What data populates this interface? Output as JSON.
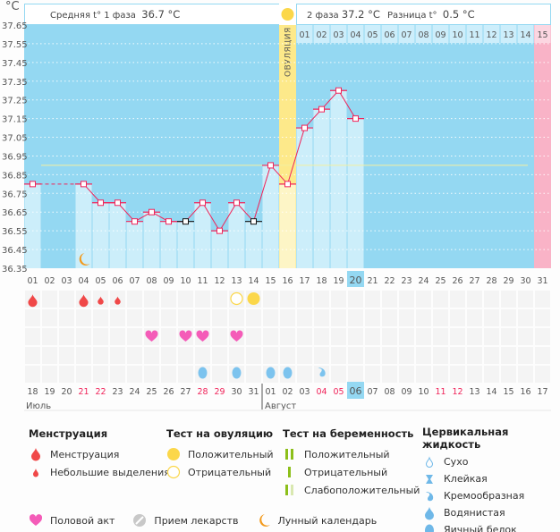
{
  "unit_label": "°C",
  "header": {
    "phase1_label": "Средняя t° 1 фаза",
    "phase1_value": "36.7 °C",
    "phase2_label": "2 фаза",
    "phase2_value": "37.2 °C",
    "diff_label": "Разница t°",
    "diff_value": "0.5 °C",
    "ovulation_label": "ОВУЛЯЦИЯ"
  },
  "colors": {
    "bg": "#94d8f2",
    "bar": "#cceefa",
    "line": "#f0245a",
    "ovulation": "#fde98a",
    "period_next": "#f9b3c7",
    "cover": "#f3f0a0",
    "highlight": "#94d8f2"
  },
  "chart_data": {
    "type": "line",
    "ylabel": "°C",
    "ylim": [
      36.35,
      37.65
    ],
    "yticks": [
      "37.65",
      "37.55",
      "37.45",
      "37.35",
      "37.25",
      "37.15",
      "37.05",
      "36.95",
      "36.85",
      "36.75",
      "36.65",
      "36.55",
      "36.45",
      "36.35"
    ],
    "grid": true,
    "cycle_days": [
      "01",
      "02",
      "03",
      "04",
      "05",
      "06",
      "07",
      "08",
      "09",
      "10",
      "11",
      "12",
      "13",
      "14",
      "15",
      "16",
      "17",
      "18",
      "19",
      "20",
      "21",
      "22",
      "23",
      "24",
      "25",
      "26",
      "27",
      "28",
      "29",
      "30",
      "31"
    ],
    "temperatures": [
      36.8,
      null,
      null,
      36.8,
      36.7,
      36.7,
      36.6,
      36.65,
      36.6,
      36.6,
      36.7,
      36.55,
      36.7,
      36.6,
      36.9,
      36.8,
      37.1,
      37.2,
      37.3,
      37.15,
      null,
      null,
      null,
      null,
      null,
      null,
      null,
      null,
      null,
      null,
      null
    ],
    "excluded_points_days": [
      10,
      14
    ],
    "cover_line": 36.9,
    "ovulation_day": 16,
    "today_day": 20,
    "next_period_day": 31,
    "phase2_days": [
      "01",
      "02",
      "03",
      "04",
      "05",
      "06",
      "07",
      "08",
      "09",
      "10",
      "11",
      "12",
      "13",
      "14",
      "15"
    ],
    "calendar_dates": [
      "18",
      "19",
      "20",
      "21",
      "22",
      "23",
      "24",
      "25",
      "26",
      "27",
      "28",
      "29",
      "30",
      "31",
      "01",
      "02",
      "03",
      "04",
      "05",
      "06",
      "07",
      "08",
      "09",
      "10",
      "11",
      "12",
      "13",
      "14",
      "15",
      "16",
      "17"
    ],
    "weekend_dates_idx": [
      4,
      5,
      11,
      12,
      18,
      19,
      25,
      26
    ],
    "months": [
      "Июль",
      "Август"
    ],
    "events": {
      "menstruation": [
        1,
        4
      ],
      "spotting": [
        5,
        6
      ],
      "ovulation_test_negative": [
        13
      ],
      "ovulation_test_positive": [
        14
      ],
      "intercourse": [
        8,
        10,
        11,
        13
      ],
      "cervical_egg_white": [
        11,
        13,
        15,
        16
      ],
      "cervical_creamy": [
        18
      ]
    }
  },
  "legend": {
    "menstruation": {
      "title": "Менструация",
      "items": [
        "Менструация",
        "Небольшие выделения"
      ]
    },
    "ovulation_test": {
      "title": "Тест на овуляцию",
      "items": [
        "Положительный",
        "Отрицательный"
      ]
    },
    "pregnancy_test": {
      "title": "Тест на беременность",
      "items": [
        "Положительный",
        "Отрицательный",
        "Слабоположительный"
      ]
    },
    "cervical": {
      "title": "Цервикальная жидкость",
      "items": [
        "Сухо",
        "Клейкая",
        "Кремообразная",
        "Водянистая",
        "Яичный белок"
      ]
    },
    "other": [
      "Половой акт",
      "Прием лекарств",
      "Лунный календарь"
    ]
  }
}
